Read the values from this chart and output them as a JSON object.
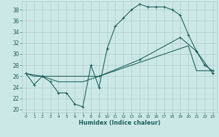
{
  "title": "",
  "xlabel": "Humidex (Indice chaleur)",
  "bg_color": "#cce8e6",
  "grid_color": "#aaccca",
  "line_color": "#1a5f5a",
  "marker": "+",
  "xlim": [
    -0.5,
    23.5
  ],
  "ylim": [
    19.5,
    39.5
  ],
  "xticks": [
    0,
    1,
    2,
    3,
    4,
    5,
    6,
    7,
    8,
    9,
    10,
    11,
    12,
    13,
    14,
    15,
    16,
    17,
    18,
    19,
    20,
    21,
    22,
    23
  ],
  "yticks": [
    20,
    22,
    24,
    26,
    28,
    30,
    32,
    34,
    36,
    38
  ],
  "line1_x": [
    0,
    1,
    2,
    3,
    4,
    5,
    6,
    7,
    8,
    9,
    10,
    11,
    12,
    13,
    14,
    15,
    16,
    17,
    18,
    19,
    20,
    21,
    22,
    23
  ],
  "line1_y": [
    26.5,
    24.5,
    26,
    25,
    23,
    23,
    21,
    20.5,
    28,
    24,
    31,
    35,
    36.5,
    38,
    39,
    38.5,
    38.5,
    38.5,
    38,
    37,
    33.5,
    30.5,
    28,
    27
  ],
  "line2_x": [
    0,
    1,
    2,
    3,
    4,
    5,
    6,
    7,
    8,
    9,
    10,
    11,
    12,
    13,
    14,
    15,
    16,
    17,
    18,
    19,
    20,
    21,
    22,
    23
  ],
  "line2_y": [
    26.5,
    26,
    26,
    25.5,
    25,
    25,
    25,
    25,
    25.5,
    26,
    26.5,
    27,
    27.5,
    28,
    28.5,
    29,
    29.5,
    30,
    30.5,
    31,
    31.5,
    27,
    27,
    27
  ],
  "line3_x": [
    0,
    2,
    9,
    14,
    19,
    21,
    23
  ],
  "line3_y": [
    26.5,
    26,
    26,
    29,
    33,
    30.5,
    26.5
  ]
}
